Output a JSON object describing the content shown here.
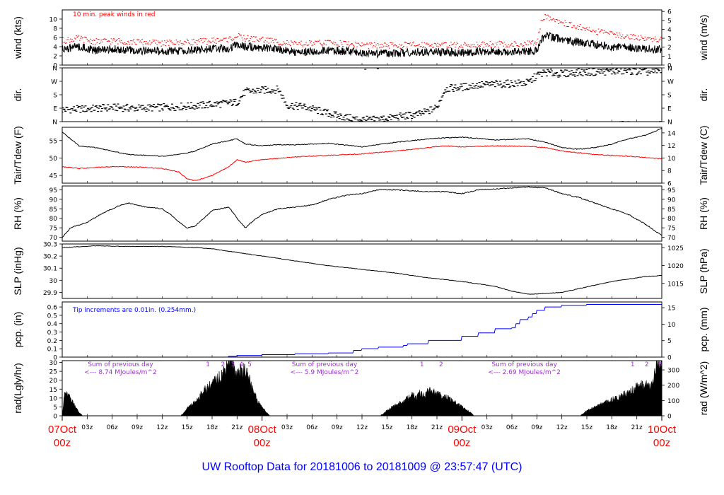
{
  "footer_title": "UW Rooftop Data for 20181006  to  20181009 @ 23:57:47  (UTC)",
  "colors": {
    "frame": "#000000",
    "peak": "#ff0000",
    "dew": "#ff0000",
    "precip": "#0000ff",
    "note_precip": "#0000ff",
    "radsum": "#9932cc",
    "footer": "#0000ff",
    "daylabel": "#ff0000"
  },
  "time_axis": {
    "range_hours": [
      0,
      72
    ],
    "hour_ticks": [
      {
        "h": 3,
        "label": "03z"
      },
      {
        "h": 6,
        "label": "06z"
      },
      {
        "h": 9,
        "label": "09z"
      },
      {
        "h": 12,
        "label": "12z"
      },
      {
        "h": 15,
        "label": "15z"
      },
      {
        "h": 18,
        "label": "18z"
      },
      {
        "h": 21,
        "label": "21z"
      },
      {
        "h": 27,
        "label": "03z"
      },
      {
        "h": 30,
        "label": "06z"
      },
      {
        "h": 33,
        "label": "09z"
      },
      {
        "h": 36,
        "label": "12z"
      },
      {
        "h": 39,
        "label": "15z"
      },
      {
        "h": 42,
        "label": "18z"
      },
      {
        "h": 45,
        "label": "21z"
      },
      {
        "h": 51,
        "label": "03z"
      },
      {
        "h": 54,
        "label": "06z"
      },
      {
        "h": 57,
        "label": "09z"
      },
      {
        "h": 60,
        "label": "12z"
      },
      {
        "h": 63,
        "label": "15z"
      },
      {
        "h": 66,
        "label": "18z"
      },
      {
        "h": 69,
        "label": "21z"
      }
    ],
    "day_labels": [
      {
        "h": 0,
        "date": "07Oct",
        "time": "00z"
      },
      {
        "h": 24,
        "date": "08Oct",
        "time": "00z"
      },
      {
        "h": 48,
        "date": "09Oct",
        "time": "00z"
      },
      {
        "h": 72,
        "date": "10Oct",
        "time": "00z"
      }
    ]
  },
  "chart_data": [
    {
      "id": "wind",
      "type": "line",
      "left_label": "wind (kts)",
      "right_label": "wind (m/s)",
      "ylim": [
        0,
        12
      ],
      "left_ticks": [
        0,
        2,
        4,
        6,
        8,
        10
      ],
      "right_ticks": [
        {
          "label": "0",
          "v": 0
        },
        {
          "label": "1",
          "v": 1.94
        },
        {
          "label": "2",
          "v": 3.89
        },
        {
          "label": "3",
          "v": 5.83
        },
        {
          "label": "4",
          "v": 7.78
        },
        {
          "label": "5",
          "v": 9.72
        },
        {
          "label": "6",
          "v": 11.66
        }
      ],
      "annotation": "10 min. peak winds in red",
      "series": [
        {
          "name": "wind",
          "x": [
            0,
            2,
            4,
            6,
            8,
            10,
            12,
            14,
            16,
            18,
            20,
            21,
            22,
            24,
            26,
            28,
            30,
            32,
            34,
            36,
            38,
            40,
            42,
            44,
            46,
            48,
            50,
            52,
            54,
            56,
            57,
            57.5,
            58,
            60,
            62,
            64,
            66,
            68,
            70,
            72
          ],
          "y": [
            3.5,
            4,
            3.2,
            3.5,
            3.3,
            3.1,
            3.0,
            3.1,
            3.3,
            3.5,
            3.7,
            4.5,
            4.0,
            3.8,
            3.3,
            2.8,
            3.0,
            3.2,
            3.0,
            2.7,
            2.5,
            2.6,
            2.8,
            2.9,
            2.8,
            2.7,
            2.9,
            3.0,
            2.9,
            3.0,
            3.2,
            5.5,
            6.5,
            5.5,
            5.0,
            4.5,
            4.0,
            3.8,
            3.5,
            3.5
          ]
        },
        {
          "name": "10 min. peak",
          "x": [
            0,
            2,
            4,
            6,
            8,
            10,
            12,
            14,
            16,
            18,
            20,
            21,
            22,
            24,
            26,
            28,
            30,
            32,
            34,
            36,
            38,
            40,
            42,
            44,
            46,
            48,
            50,
            52,
            54,
            56,
            57,
            57.5,
            58,
            60,
            62,
            64,
            66,
            68,
            70,
            72
          ],
          "y": [
            5,
            5.5,
            4.8,
            5,
            4.8,
            4.7,
            4.5,
            4.6,
            4.8,
            5,
            5.3,
            6.0,
            5.5,
            5.3,
            4.8,
            4.2,
            4.4,
            4.6,
            4.4,
            4.1,
            3.9,
            4.0,
            4.1,
            4.2,
            4.1,
            4.0,
            4.2,
            4.3,
            4.2,
            4.3,
            4.5,
            9,
            10.5,
            9,
            8,
            7,
            6.5,
            6,
            5.5,
            5.2
          ]
        }
      ]
    },
    {
      "id": "dir",
      "type": "scatter",
      "left_label": "dir.",
      "right_label": "dir.",
      "ylim": [
        0,
        360
      ],
      "left_ticks": [
        {
          "label": "N",
          "v": 0
        },
        {
          "label": "E",
          "v": 90
        },
        {
          "label": "S",
          "v": 180
        },
        {
          "label": "W",
          "v": 270
        },
        {
          "label": "N",
          "v": 360
        }
      ],
      "right_ticks": [
        {
          "label": "N",
          "v": 0
        },
        {
          "label": "E",
          "v": 90
        },
        {
          "label": "S",
          "v": 180
        },
        {
          "label": "W",
          "v": 270
        },
        {
          "label": "N",
          "v": 360
        }
      ],
      "series": [
        {
          "name": "direction",
          "x": [
            0,
            3,
            6,
            9,
            12,
            14,
            17,
            19,
            21,
            22,
            24,
            26,
            27,
            29,
            31,
            33,
            35,
            37,
            40,
            43,
            45,
            46,
            48,
            50,
            52,
            54,
            56,
            57,
            58,
            60,
            62,
            65,
            68,
            71,
            72
          ],
          "y": [
            80,
            85,
            95,
            90,
            95,
            100,
            110,
            120,
            130,
            200,
            210,
            215,
            110,
            100,
            70,
            40,
            20,
            10,
            30,
            50,
            95,
            220,
            230,
            245,
            250,
            255,
            260,
            310,
            330,
            320,
            330,
            335,
            340,
            330,
            350
          ]
        }
      ]
    },
    {
      "id": "temp",
      "type": "line",
      "left_label": "Tair/Tdew (F)",
      "right_label": "Tair/Tdew (C)",
      "ylim": [
        42.8,
        58.8
      ],
      "left_ticks": [
        45,
        50,
        55
      ],
      "right_ticks": [
        {
          "label": "6",
          "v": 42.8
        },
        {
          "label": "8",
          "v": 46.4
        },
        {
          "label": "10",
          "v": 50.0
        },
        {
          "label": "12",
          "v": 53.6
        },
        {
          "label": "14",
          "v": 57.2
        }
      ],
      "series": [
        {
          "name": "Tair",
          "x": [
            0,
            2,
            4,
            6,
            8,
            10,
            12,
            14,
            16,
            18,
            20,
            21,
            22,
            24,
            26,
            28,
            30,
            32,
            36,
            40,
            44,
            48,
            52,
            56,
            58,
            60,
            62,
            64,
            66,
            68,
            70,
            72
          ],
          "y": [
            57.5,
            53.5,
            53,
            52,
            51,
            50.8,
            50.5,
            51,
            52,
            54,
            55,
            55.5,
            54,
            53.5,
            53.8,
            53.8,
            54,
            54.2,
            53.2,
            54.5,
            55.5,
            56,
            55.2,
            55.5,
            54.5,
            53,
            52.5,
            53,
            54,
            55.5,
            56.5,
            58.5
          ]
        },
        {
          "name": "Tdew",
          "x": [
            0,
            2,
            4,
            6,
            8,
            10,
            12,
            14,
            15,
            16,
            18,
            20,
            21,
            22,
            24,
            28,
            32,
            36,
            40,
            44,
            46,
            48,
            52,
            56,
            58,
            60,
            64,
            68,
            72
          ],
          "y": [
            47.5,
            47,
            47.3,
            47.5,
            47.5,
            47.3,
            47,
            46,
            44,
            43.5,
            45,
            47.5,
            49.5,
            48.8,
            49.5,
            50.3,
            50.8,
            51.2,
            52,
            53,
            53.5,
            53.2,
            53.5,
            53.3,
            53.0,
            52.0,
            51.0,
            50.5,
            49.8
          ]
        }
      ]
    },
    {
      "id": "rh",
      "type": "line",
      "left_label": "RH (%)",
      "right_label": "RH (%)",
      "ylim": [
        68,
        97
      ],
      "left_ticks": [
        70,
        75,
        80,
        85,
        90,
        95
      ],
      "right_ticks": [
        {
          "label": "70",
          "v": 70
        },
        {
          "label": "75",
          "v": 75
        },
        {
          "label": "80",
          "v": 80
        },
        {
          "label": "85",
          "v": 85
        },
        {
          "label": "90",
          "v": 90
        },
        {
          "label": "95",
          "v": 95
        }
      ],
      "series": [
        {
          "name": "RH",
          "x": [
            0,
            1,
            3,
            5,
            7,
            8,
            10,
            12,
            13,
            14,
            15,
            16,
            17,
            18,
            19,
            20,
            21,
            22,
            23,
            24,
            26,
            28,
            30,
            32,
            34,
            36,
            38,
            40,
            42,
            44,
            46,
            48,
            50,
            52,
            54,
            56,
            58,
            60,
            62,
            64,
            66,
            68,
            70,
            71,
            72
          ],
          "y": [
            70,
            75,
            78,
            83,
            87,
            88,
            86,
            85,
            82,
            78,
            75,
            76,
            80,
            84,
            85,
            86,
            80,
            75,
            79,
            82,
            85,
            86,
            87,
            90,
            92,
            93,
            95,
            95,
            94.5,
            94,
            94,
            93,
            95,
            95.5,
            96,
            96.5,
            96,
            93,
            91,
            88,
            85,
            82,
            77,
            74,
            71
          ]
        }
      ]
    },
    {
      "id": "slp",
      "type": "line",
      "left_label": "SLP (inHg)",
      "right_label": "SLP (hPa)",
      "ylim": [
        29.85,
        30.3
      ],
      "left_ticks": [
        29.9,
        30.0,
        30.1,
        30.2,
        30.3
      ],
      "right_ticks": [
        {
          "label": "1015",
          "v": 29.974
        },
        {
          "label": "1020",
          "v": 30.122
        },
        {
          "label": "1025",
          "v": 30.269
        }
      ],
      "series": [
        {
          "name": "SLP",
          "x": [
            0,
            4,
            8,
            12,
            16,
            18,
            20,
            24,
            28,
            32,
            36,
            40,
            44,
            48,
            52,
            54,
            56,
            58,
            60,
            62,
            64,
            66,
            68,
            70,
            72
          ],
          "y": [
            30.27,
            30.285,
            30.28,
            30.28,
            30.27,
            30.26,
            30.24,
            30.2,
            30.16,
            30.12,
            30.09,
            30.06,
            30.02,
            29.99,
            29.95,
            29.91,
            29.885,
            29.89,
            29.9,
            29.93,
            29.96,
            29.99,
            30.01,
            30.03,
            30.04
          ]
        }
      ]
    },
    {
      "id": "pcp",
      "type": "line",
      "left_label": "pcp. (in)",
      "right_label": "pcp. (mm)",
      "ylim": [
        0,
        0.66
      ],
      "left_ticks": [
        0,
        0.1,
        0.2,
        0.3,
        0.4,
        0.5,
        0.6
      ],
      "right_ticks": [
        {
          "label": "0",
          "v": 0
        },
        {
          "label": "5",
          "v": 0.197
        },
        {
          "label": "10",
          "v": 0.394
        },
        {
          "label": "15",
          "v": 0.591
        }
      ],
      "annotation": "Tip increments are 0.01in. (0.254mm.)",
      "series": [
        {
          "name": "precip",
          "x": [
            0,
            19,
            20,
            21,
            24,
            28,
            32,
            35,
            36,
            38,
            41,
            41.5,
            44,
            48,
            50,
            52,
            54,
            54.5,
            55,
            56,
            56.5,
            57,
            58,
            60,
            63,
            72
          ],
          "y": [
            0,
            0,
            0.01,
            0.02,
            0.03,
            0.04,
            0.05,
            0.08,
            0.1,
            0.12,
            0.14,
            0.16,
            0.2,
            0.25,
            0.29,
            0.34,
            0.35,
            0.4,
            0.45,
            0.48,
            0.52,
            0.56,
            0.6,
            0.62,
            0.63,
            0.63
          ]
        }
      ]
    },
    {
      "id": "rad",
      "type": "area",
      "left_label": "rad(Lgly/hr)",
      "right_label": "rad (W/m^2)",
      "ylim": [
        0,
        31
      ],
      "left_ticks": [
        0,
        5,
        10,
        15,
        20,
        25,
        30
      ],
      "right_ticks": [
        {
          "label": "0",
          "v": 0
        },
        {
          "label": "100",
          "v": 8.6
        },
        {
          "label": "200",
          "v": 17.2
        },
        {
          "label": "300",
          "v": 25.8
        }
      ],
      "markers": [
        {
          "h": 17.5,
          "label": "1"
        },
        {
          "h": 19.3,
          "label": "2"
        },
        {
          "h": 20.5,
          "label": "3"
        },
        {
          "h": 21.5,
          "label": "4"
        },
        {
          "h": 22.5,
          "label": "5"
        },
        {
          "h": 43.2,
          "label": "1"
        },
        {
          "h": 45.5,
          "label": "2"
        },
        {
          "h": 68.5,
          "label": "1"
        },
        {
          "h": 70.2,
          "label": "2"
        },
        {
          "h": 71.8,
          "label": "3"
        }
      ],
      "daily_sums": [
        {
          "h": 7,
          "line1": "Sum of previous day",
          "line2": "<--- 8.74 MJoules/m^2"
        },
        {
          "h": 31.5,
          "line1": "Sum of previous day",
          "line2": "<--- 5.9 MJoules/m^2"
        },
        {
          "h": 55.5,
          "line1": "Sum of previous day",
          "line2": "<--- 2.69 MJoules/m^2"
        }
      ],
      "series": [
        {
          "name": "radiation",
          "x": [
            0,
            0.3,
            1,
            1.5,
            2,
            2.5,
            14,
            14.5,
            15,
            16,
            17,
            18,
            19,
            19.5,
            20,
            20.5,
            21,
            21.5,
            22,
            22.5,
            23,
            23.5,
            24.5,
            25,
            38,
            38.5,
            39,
            40,
            41,
            42,
            42.5,
            43,
            43.5,
            44,
            45,
            46,
            47,
            48,
            49,
            49.5,
            62,
            62.5,
            63,
            64,
            65,
            66,
            67,
            68,
            69,
            70,
            70.5,
            71,
            71.5,
            72
          ],
          "y": [
            0,
            13,
            10,
            6,
            2,
            0,
            0,
            1,
            4,
            8,
            14,
            18,
            22,
            26,
            32,
            28,
            24,
            26,
            25,
            20,
            14,
            8,
            2,
            0,
            0,
            1,
            3,
            6,
            8,
            12,
            10,
            13,
            11,
            15,
            12,
            11,
            8,
            5,
            2,
            0,
            0,
            1,
            3,
            5,
            7,
            9,
            11,
            13,
            16,
            18,
            16,
            20,
            32,
            30
          ]
        }
      ]
    }
  ]
}
